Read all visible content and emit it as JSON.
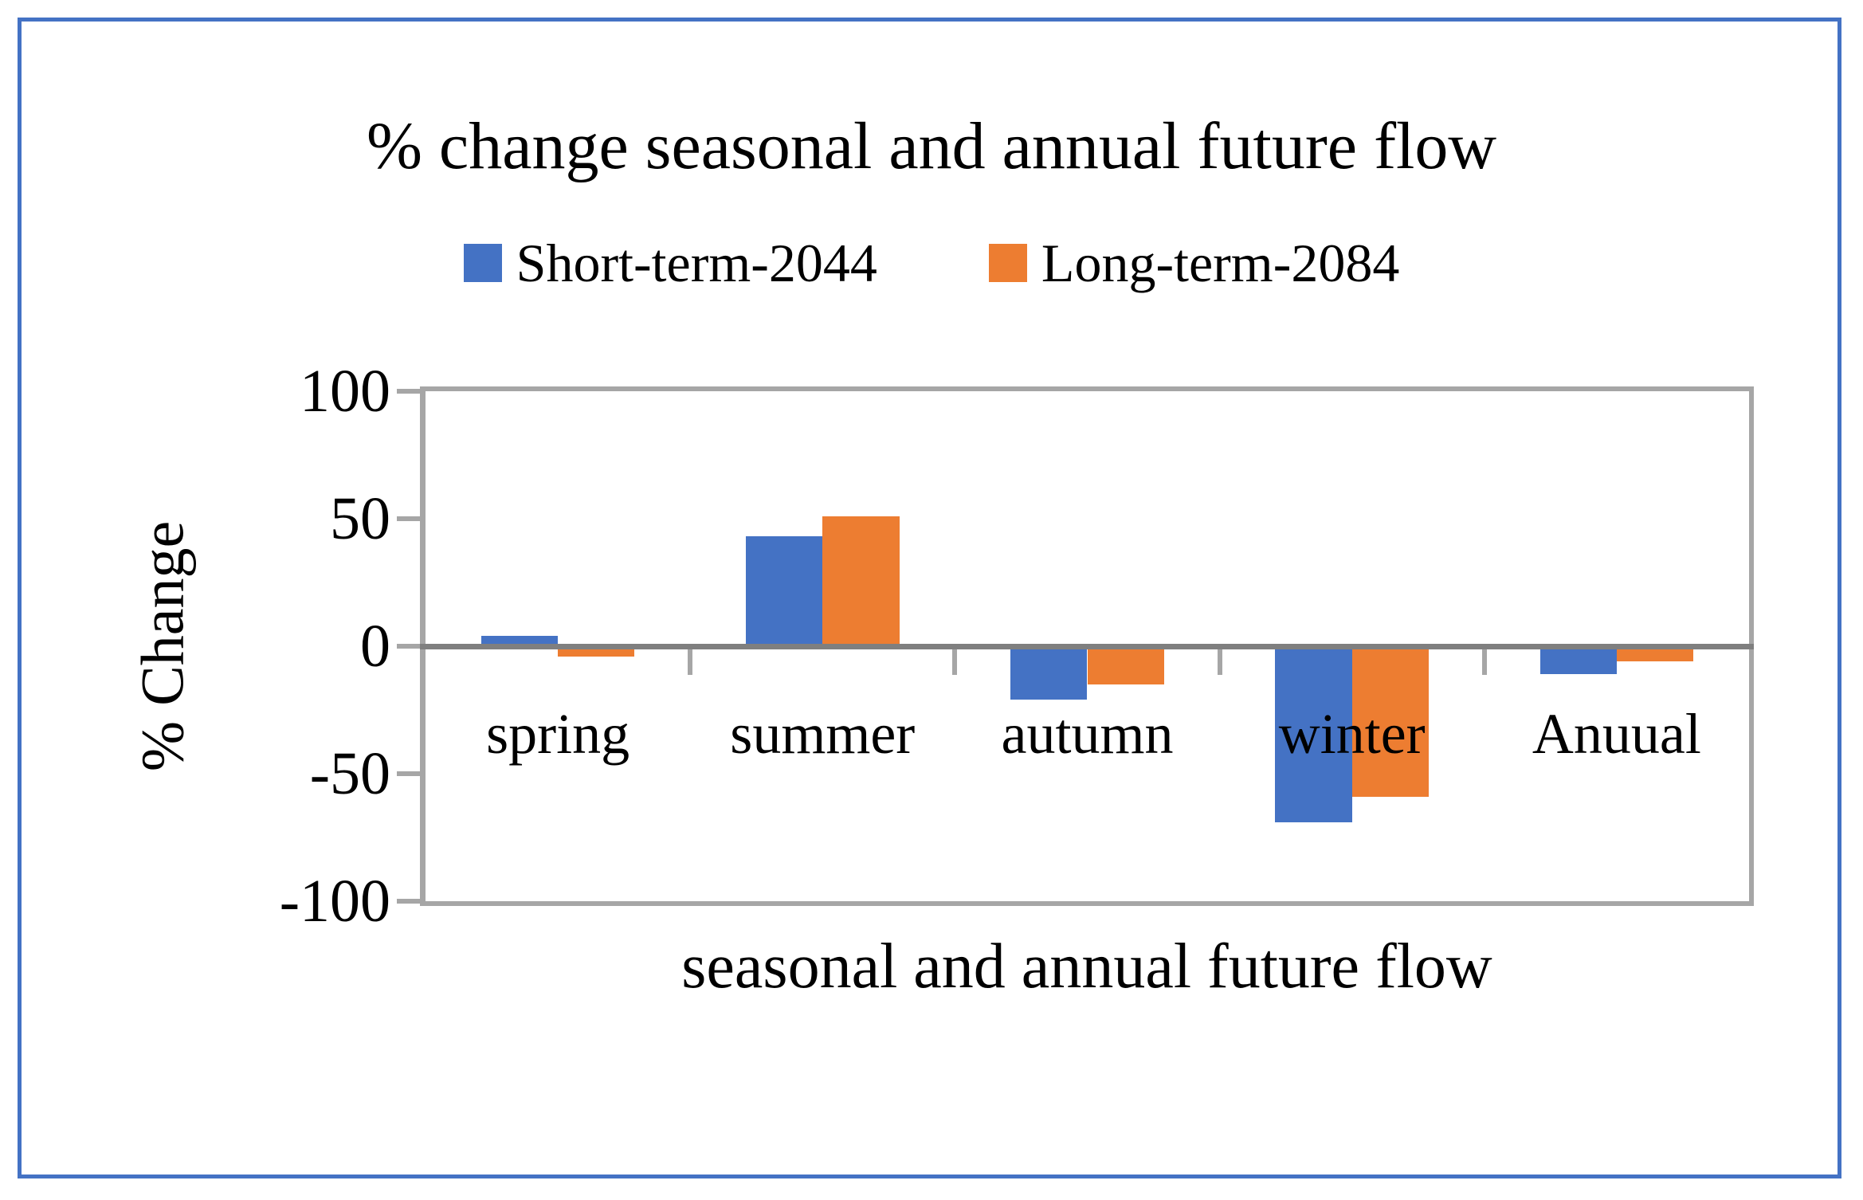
{
  "figure": {
    "border_color": "#4472C4",
    "background_color": "#FFFFFF",
    "axis_line_color": "#7F7F7F",
    "frame_line_color": "#A6A6A6"
  },
  "chart_data": {
    "type": "bar",
    "title": "% change seasonal and annual future flow",
    "categories": [
      "spring",
      "summer",
      "autumn",
      "winter",
      "Anuual"
    ],
    "series": [
      {
        "name": "Short-term-2044",
        "color": "#4472C4",
        "values": [
          4,
          43,
          -21,
          -69,
          -11
        ]
      },
      {
        "name": "Long-term-2084",
        "color": "#ED7D31",
        "values": [
          -4,
          51,
          -15,
          -59,
          -6
        ]
      }
    ],
    "xlabel": "seasonal and annual future flow",
    "ylabel": "% Change",
    "ylim": [
      -100,
      100
    ],
    "yticks": [
      100,
      50,
      0,
      -50,
      -100
    ],
    "grid": false,
    "legend_position": "top"
  }
}
